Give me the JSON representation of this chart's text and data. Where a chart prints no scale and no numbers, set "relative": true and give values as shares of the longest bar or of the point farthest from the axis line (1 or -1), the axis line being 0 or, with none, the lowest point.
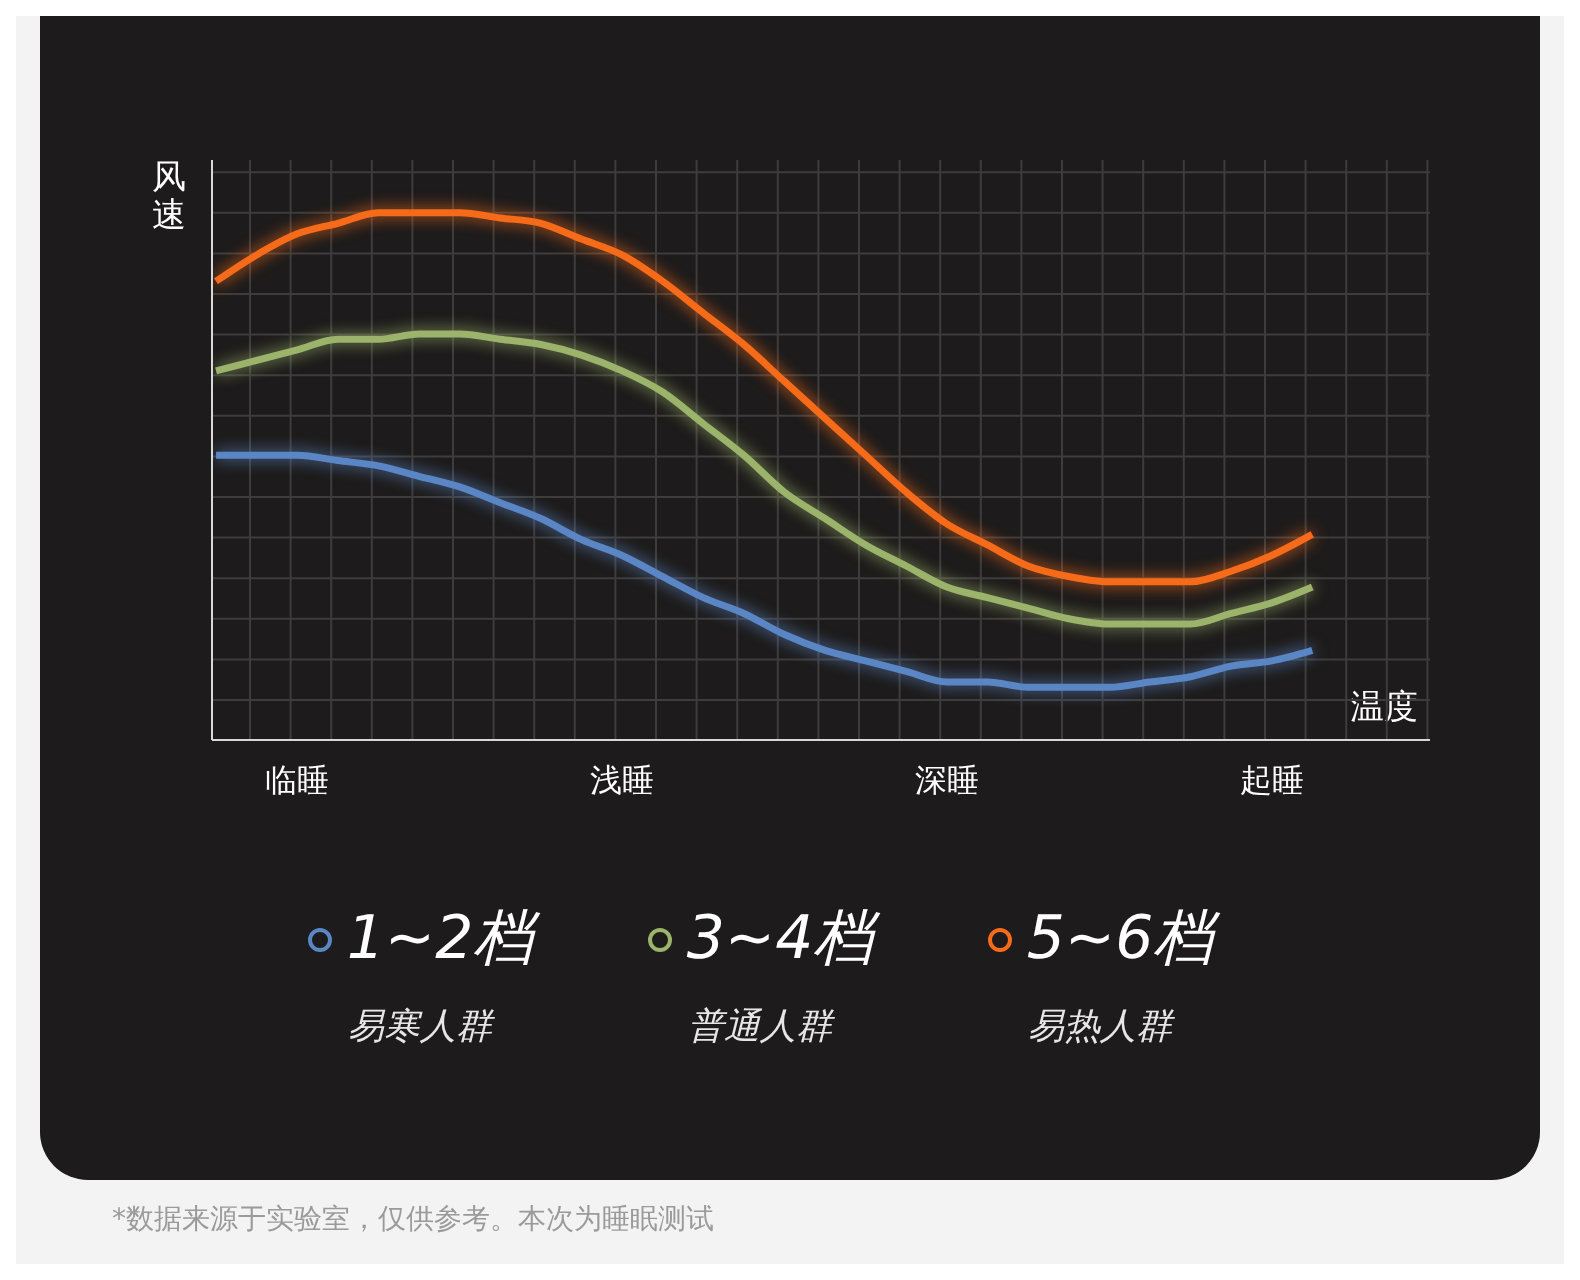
{
  "chart_data": {
    "type": "line",
    "relative": true,
    "ylabel": "风速",
    "xlabel": "温度",
    "categories": [
      null,
      null,
      "临睡",
      null,
      null,
      null,
      null,
      null,
      null,
      null,
      "浅睡",
      null,
      null,
      null,
      null,
      null,
      null,
      null,
      "深睡",
      null,
      null,
      null,
      null,
      null,
      null,
      null,
      "起睡",
      null
    ],
    "series": [
      {
        "name": "1~2档",
        "color": "#5b86c5",
        "values": [
          0.54,
          0.54,
          0.54,
          0.53,
          0.52,
          0.5,
          0.48,
          0.45,
          0.42,
          0.38,
          0.35,
          0.31,
          0.27,
          0.24,
          0.2,
          0.17,
          0.15,
          0.13,
          0.11,
          0.11,
          0.1,
          0.1,
          0.1,
          0.11,
          0.12,
          0.14,
          0.15,
          0.17
        ]
      },
      {
        "name": "3~4档",
        "color": "#9bb36a",
        "values": [
          0.7,
          0.72,
          0.74,
          0.76,
          0.76,
          0.77,
          0.77,
          0.76,
          0.75,
          0.73,
          0.7,
          0.66,
          0.6,
          0.54,
          0.47,
          0.42,
          0.37,
          0.33,
          0.29,
          0.27,
          0.25,
          0.23,
          0.22,
          0.22,
          0.22,
          0.24,
          0.26,
          0.29
        ]
      },
      {
        "name": "5~6档",
        "color": "#f56b1a",
        "values": [
          0.87,
          0.92,
          0.96,
          0.98,
          1.0,
          1.0,
          1.0,
          0.99,
          0.98,
          0.95,
          0.92,
          0.87,
          0.81,
          0.75,
          0.68,
          0.61,
          0.54,
          0.47,
          0.41,
          0.37,
          0.33,
          0.31,
          0.3,
          0.3,
          0.3,
          0.32,
          0.35,
          0.39
        ]
      }
    ],
    "grid": true,
    "legend": "bottom",
    "marker": "none",
    "line_style": "solid",
    "annotations": [
      "易寒人群",
      "普通人群",
      "易热人群",
      "*数据来源于实验室，仅供参考。本次为睡眠测试"
    ]
  }
}
